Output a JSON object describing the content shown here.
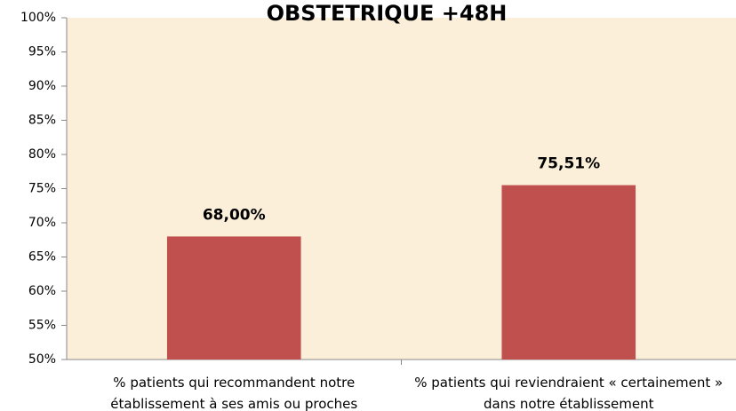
{
  "chart_data": {
    "type": "bar",
    "title": "OBSTETRIQUE +48H",
    "categories": [
      "% patients qui recommandent notre établissement à ses amis ou proches",
      "% patients qui reviendraient « certainement » dans notre établissement"
    ],
    "values": [
      68,
      75.51
    ],
    "value_labels": [
      "68,00%",
      "75,51%"
    ],
    "color": "#c0504d",
    "ylim": [
      50,
      100
    ],
    "yticks": [
      {
        "value": 50,
        "label": "50%"
      },
      {
        "value": 55,
        "label": "55%"
      },
      {
        "value": 60,
        "label": "60%"
      },
      {
        "value": 65,
        "label": "65%"
      },
      {
        "value": 70,
        "label": "70%"
      },
      {
        "value": 75,
        "label": "75%"
      },
      {
        "value": 80,
        "label": "80%"
      },
      {
        "value": 85,
        "label": "85%"
      },
      {
        "value": 90,
        "label": "90%"
      },
      {
        "value": 95,
        "label": "95%"
      },
      {
        "value": 100,
        "label": "100%"
      }
    ],
    "grid": false
  }
}
